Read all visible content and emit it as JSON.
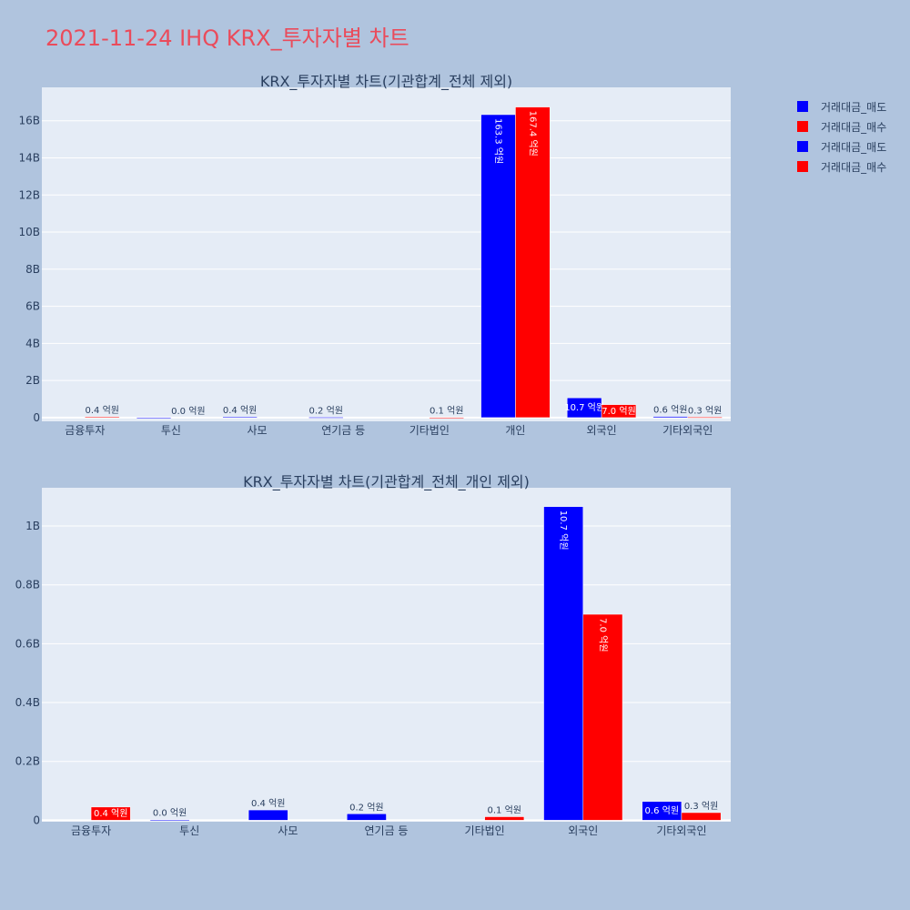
{
  "title": "2021-11-24 IHQ KRX_투자자별 차트",
  "legend": [
    {
      "name": "거래대금_매도",
      "color": "#0000ff"
    },
    {
      "name": "거래대금_매수",
      "color": "#ff0000"
    },
    {
      "name": "거래대금_매도",
      "color": "#0000ff"
    },
    {
      "name": "거래대금_매수",
      "color": "#ff0000"
    }
  ],
  "colors": {
    "sell": "#0000ff",
    "buy": "#ff0000",
    "plot_bg": "#e5ecf6",
    "page_bg": "#b0c4de"
  },
  "chart_data": [
    {
      "type": "bar",
      "title": "KRX_투자자별 차트(기관합계_전체 제외)",
      "categories": [
        "금융투자",
        "투신",
        "사모",
        "연기금 등",
        "기타법인",
        "개인",
        "외국인",
        "기타외국인"
      ],
      "series": [
        {
          "name": "거래대금_매도",
          "values": [
            0,
            0.002,
            0.035,
            0.022,
            0,
            16.33,
            1.066,
            0.064
          ],
          "labels": [
            "",
            "",
            "0.4 억원",
            "0.2 억원",
            "",
            "163.3 억원",
            "10.7 억원",
            "0.6 억원"
          ]
        },
        {
          "name": "거래대금_매수",
          "values": [
            0.045,
            0,
            0,
            0,
            0.012,
            16.74,
            0.7,
            0.026
          ],
          "labels": [
            "0.4 억원",
            "0.0 억원",
            "",
            "",
            "0.1 억원",
            "167.4 억원",
            "7.0 억원",
            "0.3 억원"
          ]
        }
      ],
      "yticks": [
        0,
        2,
        4,
        6,
        8,
        10,
        12,
        14,
        16
      ],
      "ytick_labels": [
        "0",
        "2B",
        "4B",
        "6B",
        "8B",
        "10B",
        "12B",
        "14B",
        "16B"
      ],
      "ylim": [
        -0.2,
        17.8
      ],
      "grid": true
    },
    {
      "type": "bar",
      "title": "KRX_투자자별 차트(기관합계_전체_개인 제외)",
      "categories": [
        "금융투자",
        "투신",
        "사모",
        "연기금 등",
        "기타법인",
        "외국인",
        "기타외국인"
      ],
      "series": [
        {
          "name": "거래대금_매도",
          "values": [
            0,
            0.002,
            0.035,
            0.022,
            0,
            1.066,
            0.064
          ],
          "labels": [
            "",
            "0.0 억원",
            "0.4 억원",
            "0.2 억원",
            "",
            "10.7 억원",
            "0.6 억원"
          ]
        },
        {
          "name": "거래대금_매수",
          "values": [
            0.045,
            0,
            0,
            0,
            0.012,
            0.7,
            0.026
          ],
          "labels": [
            "0.4 억원",
            "",
            "",
            "",
            "0.1 억원",
            "7.0 억원",
            "0.3 억원"
          ]
        }
      ],
      "yticks": [
        0,
        0.2,
        0.4,
        0.6,
        0.8,
        1.0
      ],
      "ytick_labels": [
        "0",
        "0.2B",
        "0.4B",
        "0.6B",
        "0.8B",
        "1B"
      ],
      "ylim": [
        -0.005,
        1.13
      ],
      "grid": true
    }
  ]
}
